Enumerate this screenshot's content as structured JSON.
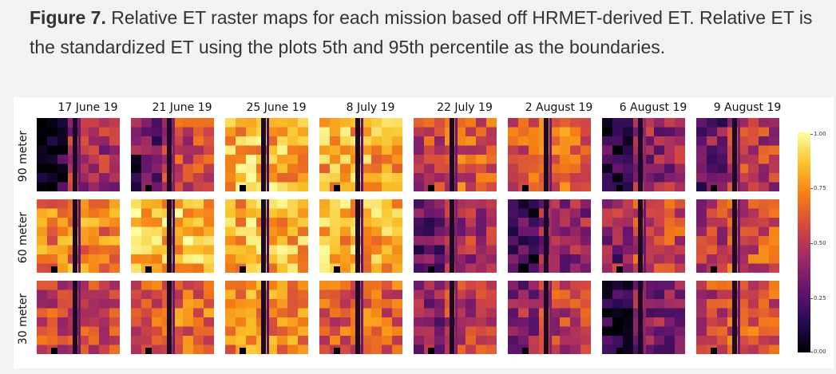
{
  "caption": {
    "label": "Figure 7.",
    "text": " Relative ET raster maps for each mission based off HRMET-derived ET. Relative ET is the standardized ET using the plots 5th and 95th percentile as the boundaries."
  },
  "columns": [
    "17 June 19",
    "21 June 19",
    "25 June 19",
    "8 July 19",
    "22 July 19",
    "2 August 19",
    "6 August 19",
    "9 August 19"
  ],
  "rows": [
    "90 meter",
    "60 meter",
    "30 meter"
  ],
  "colorbar": {
    "ticks": [
      "1.00",
      "0.75",
      "0.50",
      "0.25",
      "0.00"
    ],
    "colors": [
      "#fcffa4",
      "#fac228",
      "#f57d15",
      "#d44842",
      "#9f2a63",
      "#65156e",
      "#280b53",
      "#000004"
    ]
  },
  "tiles": [
    {
      "base": 0.45,
      "dark_left": 0.5,
      "stripe": 0.3
    },
    {
      "base": 0.55,
      "dark_left": 0.35,
      "stripe": 0.35
    },
    {
      "base": 0.82,
      "dark_left": 0.0,
      "stripe": 0.2
    },
    {
      "base": 0.8,
      "dark_left": 0.0,
      "stripe": 0.25
    },
    {
      "base": 0.6,
      "dark_left": 0.1,
      "stripe": 0.3
    },
    {
      "base": 0.65,
      "dark_left": 0.05,
      "stripe": 0.3
    },
    {
      "base": 0.4,
      "dark_left": 0.3,
      "stripe": 0.4
    },
    {
      "base": 0.5,
      "dark_left": 0.2,
      "stripe": 0.35
    },
    {
      "base": 0.72,
      "dark_left": 0.0,
      "stripe": 0.25
    },
    {
      "base": 0.85,
      "dark_left": 0.0,
      "stripe": 0.2
    },
    {
      "base": 0.82,
      "dark_left": 0.0,
      "stripe": 0.2
    },
    {
      "base": 0.82,
      "dark_left": 0.0,
      "stripe": 0.25
    },
    {
      "base": 0.45,
      "dark_left": 0.2,
      "stripe": 0.35
    },
    {
      "base": 0.4,
      "dark_left": 0.25,
      "stripe": 0.45
    },
    {
      "base": 0.55,
      "dark_left": 0.2,
      "stripe": 0.3
    },
    {
      "base": 0.58,
      "dark_left": 0.1,
      "stripe": 0.3
    },
    {
      "base": 0.55,
      "dark_left": 0.0,
      "stripe": 0.3
    },
    {
      "base": 0.65,
      "dark_left": 0.1,
      "stripe": 0.3
    },
    {
      "base": 0.72,
      "dark_left": 0.0,
      "stripe": 0.25
    },
    {
      "base": 0.62,
      "dark_left": 0.0,
      "stripe": 0.3
    },
    {
      "base": 0.5,
      "dark_left": 0.15,
      "stripe": 0.35
    },
    {
      "base": 0.52,
      "dark_left": 0.15,
      "stripe": 0.35
    },
    {
      "base": 0.35,
      "dark_left": 0.3,
      "stripe": 0.4
    },
    {
      "base": 0.6,
      "dark_left": 0.1,
      "stripe": 0.3
    }
  ]
}
